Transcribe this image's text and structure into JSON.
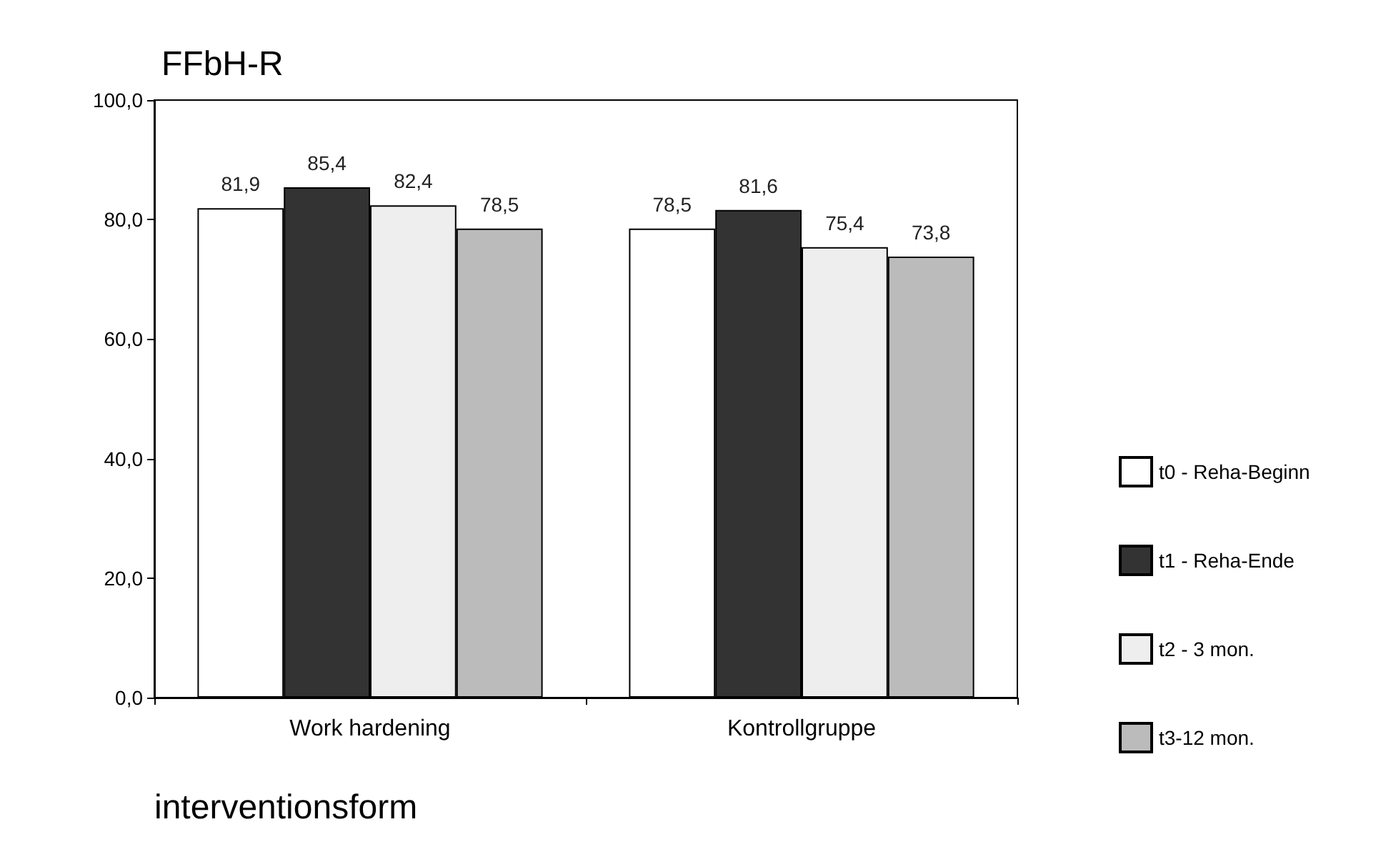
{
  "chart_data": {
    "type": "bar",
    "title": "FFbH-R",
    "xlabel": "interventionsform",
    "categories": [
      "Work hardening",
      "Kontrollgruppe"
    ],
    "series": [
      {
        "name": "t0 - Reha-Beginn",
        "color": "#ffffff",
        "values": [
          81.9,
          78.5
        ],
        "value_labels": [
          "81,9",
          "78,5"
        ]
      },
      {
        "name": "t1 - Reha-Ende",
        "color": "#333333",
        "values": [
          85.4,
          81.6
        ],
        "value_labels": [
          "85,4",
          "81,6"
        ]
      },
      {
        "name": "t2 - 3 mon.",
        "color": "#eeeeee",
        "values": [
          82.4,
          75.4
        ],
        "value_labels": [
          "82,4",
          "75,4"
        ]
      },
      {
        "name": "t3-12 mon.",
        "color": "#bbbbbb",
        "values": [
          78.5,
          73.8
        ],
        "value_labels": [
          "78,5",
          "73,8"
        ]
      }
    ],
    "ylim": [
      0,
      100
    ],
    "yticks": [
      {
        "value": 0,
        "label": "0,0"
      },
      {
        "value": 20,
        "label": "20,0"
      },
      {
        "value": 40,
        "label": "40,0"
      },
      {
        "value": 60,
        "label": "60,0"
      },
      {
        "value": 80,
        "label": "80,0"
      },
      {
        "value": 100,
        "label": "100,0"
      }
    ],
    "grid": false,
    "legend": "right"
  }
}
